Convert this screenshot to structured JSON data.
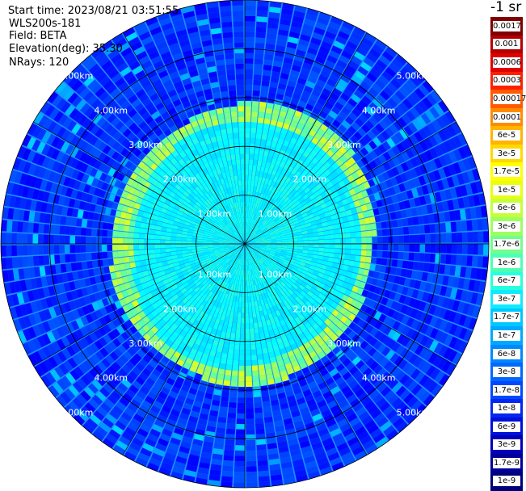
{
  "header": {
    "start_time": "Start time: 2023/08/21 03:51:55",
    "system": "WLS200s-181",
    "field": "Field: BETA",
    "elevation": "Elevation(deg): 35.30",
    "nrays": "NRays: 120"
  },
  "colorbar": {
    "unit": "-1 sr",
    "ticks": [
      "0.0017",
      "0.001",
      "0.0006",
      "0.0003",
      "0.00017",
      "0.0001",
      "6e-5",
      "3e-5",
      "1.7e-5",
      "1e-5",
      "6e-6",
      "3e-6",
      "1.7e-6",
      "1e-6",
      "6e-7",
      "3e-7",
      "1.7e-7",
      "1e-7",
      "6e-8",
      "3e-8",
      "1.7e-8",
      "1e-8",
      "6e-9",
      "3e-9",
      "1.7e-9",
      "1e-9"
    ],
    "colors": [
      "#800000",
      "#b40000",
      "#e00000",
      "#ff2000",
      "#ff5a00",
      "#ff8c00",
      "#ffb400",
      "#ffd800",
      "#ffff00",
      "#e8ff10",
      "#c4ff3a",
      "#9cff62",
      "#70ff8c",
      "#4cffb4",
      "#28ffdc",
      "#10eaff",
      "#00c8ff",
      "#00a8ff",
      "#0088ff",
      "#0068ff",
      "#0048ff",
      "#0028f0",
      "#0010d8",
      "#0000b8",
      "#000098",
      "#000078"
    ]
  },
  "chart_data": {
    "type": "heatmap",
    "projection": "polar PPI",
    "field": "BETA",
    "units": "m-1 sr-1",
    "nrays": 120,
    "elevation_deg": 35.3,
    "range_rings_km": [
      1,
      2,
      3,
      4,
      5
    ],
    "range_ring_labels": [
      "1.00km",
      "2.00km",
      "3.00km",
      "4.00km",
      "5.00km"
    ],
    "max_range_km": 5.0,
    "typical_values": {
      "inner_region_0_to_2_4km": "3e-7 to 1e-6",
      "ring_at_2_4_to_2_8km": "3e-6 to 1e-5",
      "outer_region_2_8_to_5km": "1e-8 to 1e-7"
    }
  }
}
